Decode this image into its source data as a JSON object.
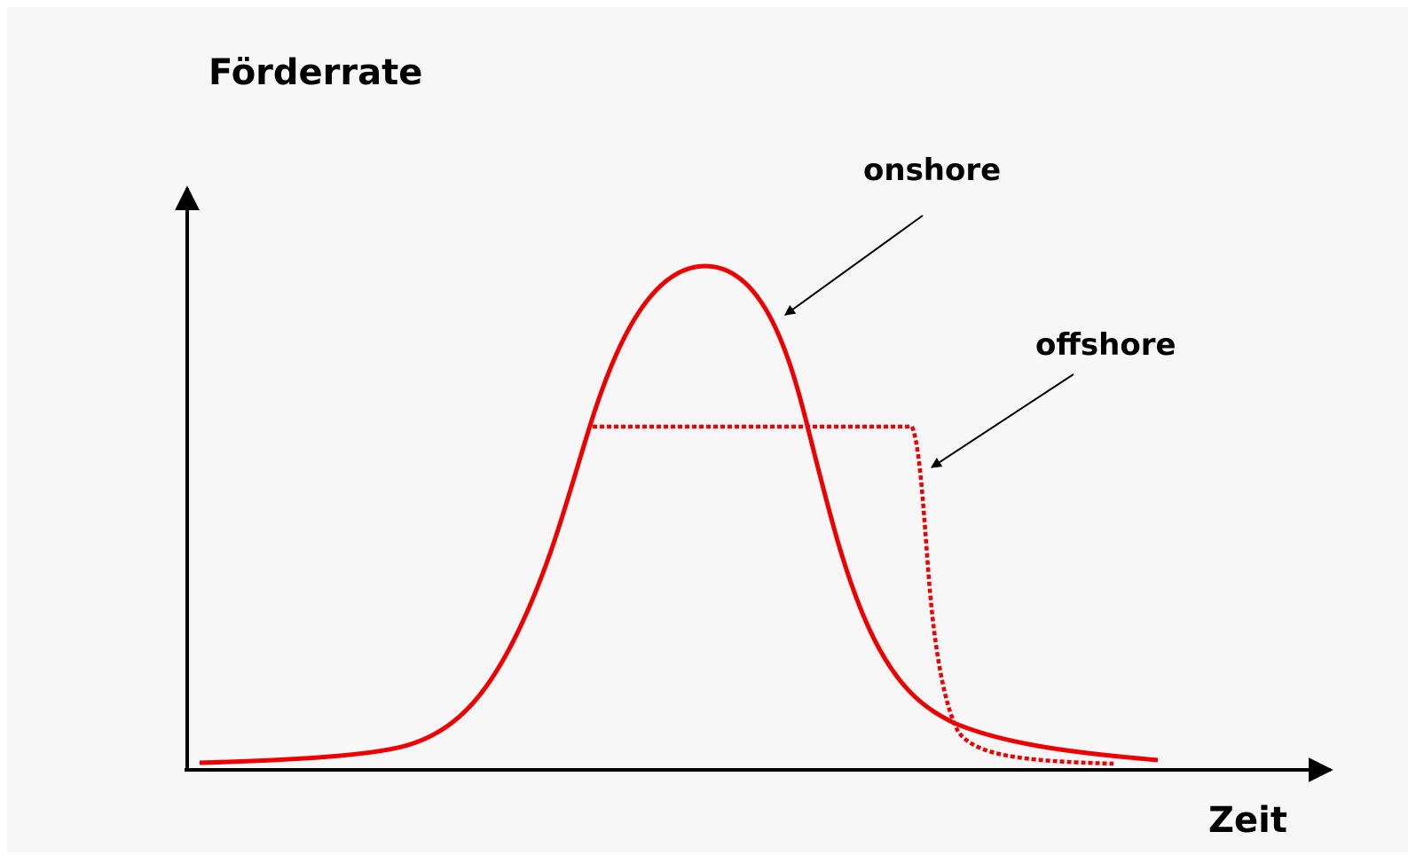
{
  "title": "Förderrate",
  "x_axis_label": "Zeit",
  "labels": {
    "onshore": "onshore",
    "offshore": "offshore"
  }
}
